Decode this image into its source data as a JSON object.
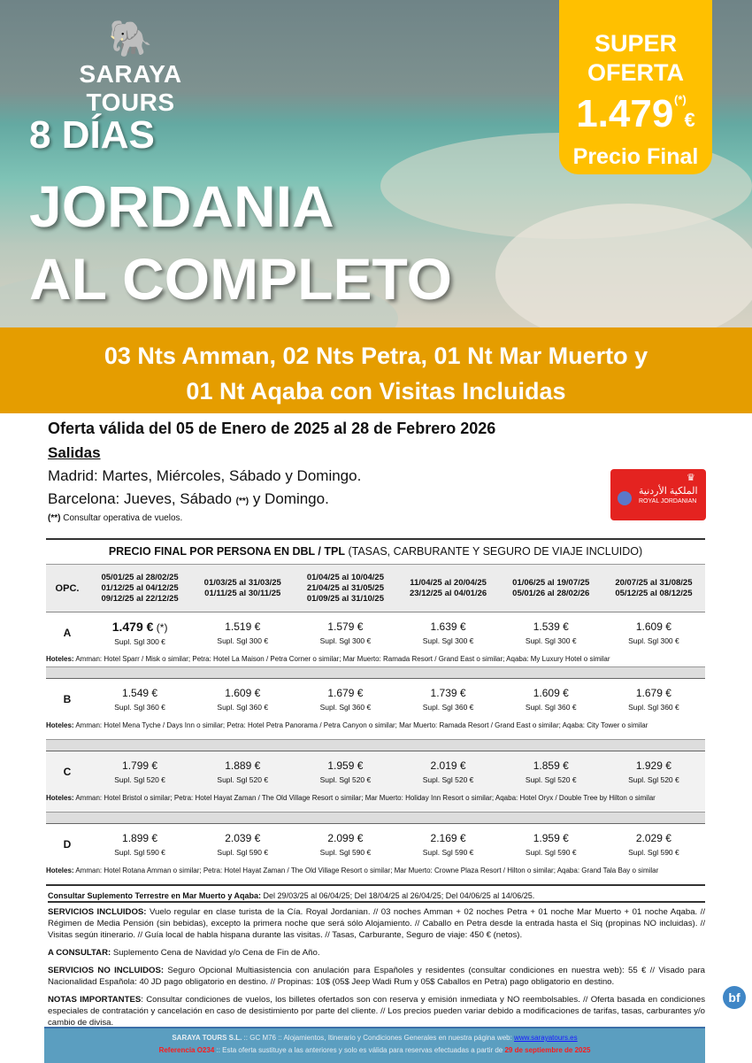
{
  "brand": {
    "name": "SARAYA TOURS"
  },
  "hero": {
    "days": "8 DÍAS",
    "title_line1": "JORDANIA",
    "title_line2": "AL COMPLETO"
  },
  "offer": {
    "line1": "SUPER",
    "line2": "OFERTA",
    "asterisk": "(*)",
    "price": "1.479",
    "currency": "€",
    "label": "Precio Final",
    "bg_color": "#ffc000"
  },
  "band": {
    "line1": "03 Nts Amman,  02 Nts Petra, 01 Nt Mar Muerto y",
    "line2": "01 Nt Aqaba con Visitas Incluidas",
    "color": "#e59d00"
  },
  "validity": "Oferta válida del 05 de Enero de 2025 al 28 de Febrero 2026",
  "departures": {
    "heading": "Salidas",
    "madrid": "Madrid: Martes, Miércoles, Sábado y Domingo.",
    "barcelona_pre": "Barcelona: Jueves, Sábado ",
    "barcelona_mark": "(**)",
    "barcelona_post": " y Domingo.",
    "note_mark": "(**)",
    "note": " Consultar operativa de vuelos."
  },
  "airline": {
    "name": "ROYAL JORDANIAN",
    "arabic": "الملكية الأردنية"
  },
  "table": {
    "title_bold": "PRECIO FINAL POR PERSONA EN DBL / TPL",
    "title_rest": " (TASAS, CARBURANTE Y SEGURO DE VIAJE INCLUIDO)",
    "opc_label": "OPC.",
    "columns": [
      [
        "05/01/25 al 28/02/25",
        "01/12/25 al 04/12/25",
        "09/12/25 al 22/12/25"
      ],
      [
        "01/03/25 al 31/03/25",
        "01/11/25 al 30/11/25"
      ],
      [
        "01/04/25 al 10/04/25",
        "21/04/25 al 31/05/25",
        "01/09/25 al 31/10/25"
      ],
      [
        "11/04/25 al 20/04/25",
        "23/12/25 al 04/01/26"
      ],
      [
        "01/06/25 al 19/07/25",
        "05/01/26 al 28/02/26"
      ],
      [
        "20/07/25 al 31/08/25",
        "05/12/25 al 08/12/25"
      ]
    ],
    "hotels_label": "Hoteles:",
    "rows": [
      {
        "opc": "A",
        "prices": [
          "1.479 €",
          "1.519 €",
          "1.579 €",
          "1.639 €",
          "1.539 €",
          "1.609 €"
        ],
        "first_mark": " (*)",
        "supl": "Supl. Sgl 300 €",
        "hotels": " Amman: Hotel Sparr / Misk o similar; Petra: Hotel La Maison / Petra Corner o similar;  Mar Muerto: Ramada Resort / Grand East o similar; Aqaba: My Luxury Hotel o similar"
      },
      {
        "opc": "B",
        "prices": [
          "1.549 €",
          "1.609 €",
          "1.679 €",
          "1.739 €",
          "1.609 €",
          "1.679 €"
        ],
        "supl": "Supl. Sgl 360 €",
        "hotels": " Amman: Hotel Mena Tyche / Days Inn o similar;  Petra: Hotel Petra Panorama / Petra Canyon o similar; Mar Muerto: Ramada Resort / Grand East o similar;  Aqaba: City Tower o similar"
      },
      {
        "opc": "C",
        "prices": [
          "1.799 €",
          "1.889 €",
          "1.959 €",
          "2.019 €",
          "1.859 €",
          "1.929 €"
        ],
        "supl": "Supl. Sgl 520 €",
        "hotels": "  Amman: Hotel Bristol o similar; Petra: Hotel Hayat Zaman / The Old Village Resort o similar; Mar Muerto: Holiday Inn Resort o similar; Aqaba: Hotel Oryx / Double Tree by Hilton o similar"
      },
      {
        "opc": "D",
        "prices": [
          "1.899 €",
          "2.039 €",
          "2.099 €",
          "2.169 €",
          "1.959 €",
          "2.029 €"
        ],
        "supl": "Supl. Sgl 590 €",
        "hotels": " Amman: Hotel Rotana Amman o similar; Petra: Hotel Hayat Zaman / The Old Village Resort o similar;  Mar Muerto: Crowne Plaza Resort / Hilton o similar; Aqaba: Grand Tala Bay o similar"
      }
    ],
    "supplement_label": "Consultar Suplemento Terrestre en Mar Muerto y Aqaba:",
    "supplement_text": " Del 29/03/25 al 06/04/25; Del 18/04/25 al 26/04/25; Del 04/06/25 al 14/06/25."
  },
  "notes": [
    {
      "label": "SERVICIOS INCLUIDOS:",
      "text": " Vuelo regular en clase turista de la Cía. Royal Jordanian. // 03 noches Amman + 02 noches Petra + 01 noche Mar Muerto + 01 noche Aqaba. // Régimen de Media Pensión (sin bebidas), excepto la primera noche que será sólo Alojamiento. // Caballo en Petra desde la entrada hasta el Siq (propinas NO incluidas). // Visitas según itinerario. // Guía local de habla hispana durante las visitas. // Tasas, Carburante, Seguro de viaje: 450 € (netos)."
    },
    {
      "label": "A CONSULTAR:",
      "text": " Suplemento Cena de Navidad y/o Cena de Fin de Año."
    },
    {
      "label": "SERVICIOS NO INCLUIDOS:",
      "text": " Seguro Opcional Multiasistencia con anulación para Españoles y residentes (consultar condiciones en nuestra web): 55 € // Visado para Nacionalidad Española: 40 JD pago obligatorio en destino. // Propinas: 10$ (05$ Jeep Wadi Rum y 05$ Caballos en Petra) pago obligatorio en destino."
    },
    {
      "label": "NOTAS IMPORTANTES",
      "text": ": Consultar condiciones de vuelos, los billetes ofertados son con reserva y emisión inmediata y NO reembolsables. // Oferta basada en condiciones especiales de contratación y cancelación en caso de desistimiento por parte del cliente. // Los precios pueden variar debido a modificaciones de tarifas, tasas, carburantes y/o cambio de divisa."
    }
  ],
  "footer": {
    "company": "SARAYA TOURS S.L.",
    "line1": " :: GC M76 ::  Alojamientos, Itinerario y Condiciones Generales en nuestra página web:  ",
    "link": "www.sarayatours.es",
    "ref": "Referencia O234",
    "line2": " :: Esta oferta sustituye a las anteriores y solo es válida para reservas efectuadas a partir de ",
    "date": "29 de septiembre de 2025"
  },
  "badge": "bf"
}
